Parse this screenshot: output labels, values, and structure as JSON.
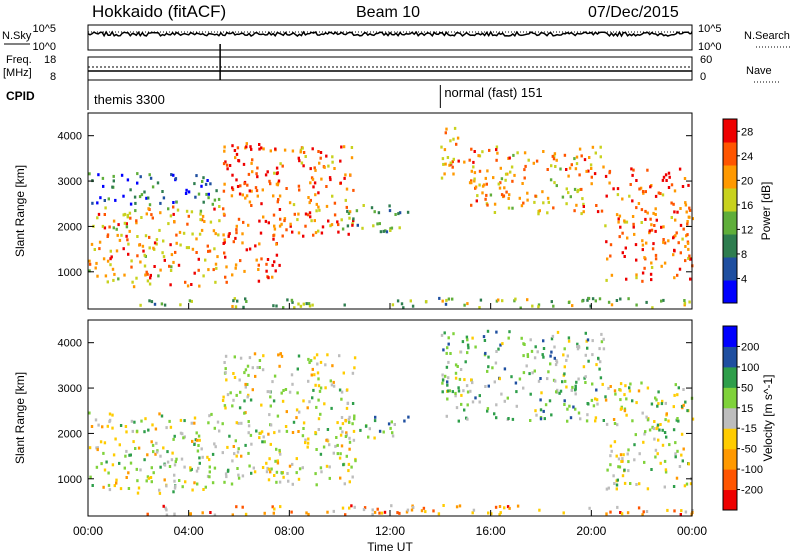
{
  "header": {
    "station": "Hokkaido (fitACF)",
    "beam": "Beam 10",
    "date": "07/Dec/2015"
  },
  "top_panels": {
    "nsky_label": "N.Sky",
    "nsearch_label": "N.Search",
    "count_ticks": [
      "10^5",
      "10^0"
    ],
    "freq_label_1": "Freq.",
    "freq_label_2": "[MHz]",
    "freq_ticks": [
      "18",
      "8"
    ],
    "nave_label": "Nave",
    "nave_ticks": [
      "60",
      "0"
    ],
    "cpid_label": "CPID",
    "cpid_segments": [
      {
        "name": "themis 3300",
        "start_hour": 0
      },
      {
        "name": "normal (fast) 151",
        "start_hour": 14.0
      }
    ],
    "data_gap_hour": 5.25
  },
  "chart_data": [
    {
      "type": "heatmap",
      "title": "Power",
      "xlabel": "Time UT",
      "ylabel": "Slant Range [km]",
      "xlim_hours": [
        0,
        24
      ],
      "x_ticks": [
        "00:00",
        "04:00",
        "08:00",
        "12:00",
        "16:00",
        "20:00",
        "00:00"
      ],
      "ylim": [
        180,
        4500
      ],
      "y_ticks": [
        1000,
        2000,
        3000,
        4000
      ],
      "colorbar_label": "Power [dB]",
      "colorbar_ticks": [
        28,
        24,
        20,
        16,
        12,
        8,
        4
      ],
      "colorbar_range": [
        0,
        30
      ],
      "colors": [
        "#0000ff",
        "#1f4fa0",
        "#2e7d4f",
        "#5fae3a",
        "#c8d21e",
        "#ff9900",
        "#ff5500",
        "#ee0000"
      ],
      "bands": [
        {
          "t0": 0.0,
          "t1": 5.2,
          "r0": 700,
          "r1": 2500,
          "level": 0.7
        },
        {
          "t0": 0.0,
          "t1": 5.2,
          "r0": 2500,
          "r1": 3200,
          "level": 0.25
        },
        {
          "t0": 5.3,
          "t1": 7.6,
          "r0": 800,
          "r1": 3900,
          "level": 0.85
        },
        {
          "t0": 7.3,
          "t1": 10.6,
          "r0": 1800,
          "r1": 3800,
          "level": 0.75
        },
        {
          "t0": 10.0,
          "t1": 12.7,
          "r0": 1900,
          "r1": 2500,
          "level": 0.35
        },
        {
          "t0": 14.0,
          "t1": 15.0,
          "r0": 3000,
          "r1": 4300,
          "level": 0.75
        },
        {
          "t0": 15.0,
          "t1": 20.5,
          "r0": 2300,
          "r1": 3800,
          "level": 0.7
        },
        {
          "t0": 20.5,
          "t1": 24.0,
          "r0": 800,
          "r1": 3300,
          "level": 0.8
        },
        {
          "t0": 2.0,
          "t1": 24.0,
          "r0": 230,
          "r1": 450,
          "level": 0.45
        }
      ]
    },
    {
      "type": "heatmap",
      "title": "Velocity",
      "xlabel": "Time UT",
      "ylabel": "Slant Range [km]",
      "xlim_hours": [
        0,
        24
      ],
      "x_ticks": [
        "00:00",
        "04:00",
        "08:00",
        "12:00",
        "16:00",
        "20:00",
        "00:00"
      ],
      "ylim": [
        180,
        4500
      ],
      "y_ticks": [
        1000,
        2000,
        3000,
        4000
      ],
      "colorbar_label": "Velocity [m s^-1]",
      "colorbar_ticks": [
        200,
        100,
        50,
        15,
        -15,
        -50,
        -100,
        -200
      ],
      "colorbar_range": [
        -250,
        250
      ],
      "colors": [
        "#ee0000",
        "#ff5500",
        "#ff9900",
        "#ffcc00",
        "#bdbdbd",
        "#7fd23a",
        "#2e9e4a",
        "#1f4fa0",
        "#0000ff"
      ],
      "bands": [
        {
          "t0": 0.0,
          "t1": 5.2,
          "r0": 700,
          "r1": 2500,
          "level": 0.5
        },
        {
          "t0": 5.3,
          "t1": 10.6,
          "r0": 900,
          "r1": 3800,
          "level": 0.5
        },
        {
          "t0": 10.3,
          "t1": 12.7,
          "r0": 1900,
          "r1": 2400,
          "level": 0.65
        },
        {
          "t0": 14.0,
          "t1": 20.5,
          "r0": 2300,
          "r1": 4300,
          "level": 0.6
        },
        {
          "t0": 20.5,
          "t1": 24.0,
          "r0": 800,
          "r1": 3200,
          "level": 0.52
        },
        {
          "t0": 2.0,
          "t1": 24.0,
          "r0": 230,
          "r1": 450,
          "level": 0.3
        }
      ]
    }
  ]
}
